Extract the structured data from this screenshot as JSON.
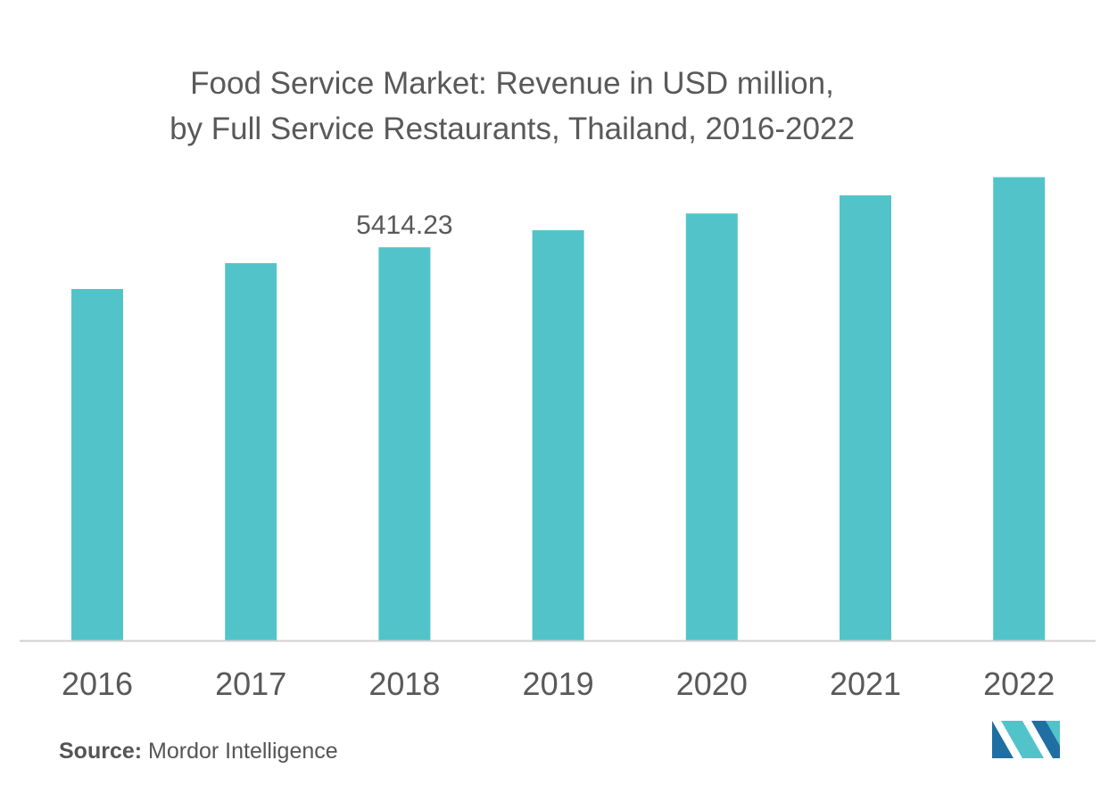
{
  "title": {
    "line1": "Food Service Market: Revenue in USD million,",
    "line2": "by Full Service Restaurants,  Thailand, 2016-2022"
  },
  "source": {
    "label": "Source:",
    "text": "Mordor Intelligence"
  },
  "colors": {
    "bar": "#52c4c9",
    "axis": "#d0d0d0",
    "text": "#595959",
    "logo_dark": "#1f6fa3",
    "logo_light": "#52c4c9"
  },
  "logo": {
    "icon": "mordor-intelligence-logo"
  },
  "chart_data": {
    "type": "bar",
    "categories": [
      "2016",
      "2017",
      "2018",
      "2019",
      "2020",
      "2021",
      "2022"
    ],
    "values": [
      4840,
      5196,
      5414.23,
      5650,
      5880,
      6130,
      6380
    ],
    "data_labels": [
      "",
      "",
      "5414.23",
      "",
      "",
      "",
      ""
    ],
    "title": "Food Service Market: Revenue in USD million, by Full Service Restaurants,  Thailand, 2016-2022",
    "xlabel": "",
    "ylabel": "",
    "ylim": [
      0,
      6400
    ],
    "grid": false,
    "legend": "none"
  }
}
